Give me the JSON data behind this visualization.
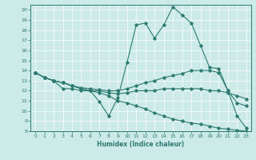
{
  "xlabel": "Humidex (Indice chaleur)",
  "xlim": [
    -0.5,
    23.5
  ],
  "ylim": [
    8,
    20.5
  ],
  "yticks": [
    8,
    9,
    10,
    11,
    12,
    13,
    14,
    15,
    16,
    17,
    18,
    19,
    20
  ],
  "xticks": [
    0,
    1,
    2,
    3,
    4,
    5,
    6,
    7,
    8,
    9,
    10,
    11,
    12,
    13,
    14,
    15,
    16,
    17,
    18,
    19,
    20,
    21,
    22,
    23
  ],
  "bg_color": "#cceae7",
  "line_color": "#2d7a72",
  "series": [
    {
      "x": [
        0,
        1,
        2,
        3,
        4,
        5,
        6,
        7,
        8,
        9,
        10,
        11,
        12,
        13,
        14,
        15,
        16,
        17,
        18,
        19,
        20,
        21,
        22,
        23
      ],
      "y": [
        13.8,
        13.3,
        13.0,
        12.2,
        12.2,
        12.0,
        12.0,
        10.9,
        9.5,
        11.3,
        14.8,
        18.5,
        18.7,
        17.2,
        18.5,
        20.3,
        19.5,
        18.7,
        16.5,
        14.3,
        14.2,
        12.0,
        9.5,
        8.3
      ]
    },
    {
      "x": [
        0,
        1,
        2,
        3,
        4,
        5,
        6,
        7,
        8,
        9,
        10,
        11,
        12,
        13,
        14,
        15,
        16,
        17,
        18,
        19,
        20,
        21,
        22,
        23
      ],
      "y": [
        13.8,
        13.3,
        13.0,
        12.8,
        12.5,
        12.3,
        12.2,
        12.1,
        12.0,
        12.0,
        12.2,
        12.5,
        12.8,
        13.0,
        13.3,
        13.5,
        13.7,
        14.0,
        14.0,
        14.0,
        13.8,
        12.0,
        10.8,
        10.5
      ]
    },
    {
      "x": [
        0,
        1,
        2,
        3,
        4,
        5,
        6,
        7,
        8,
        9,
        10,
        11,
        12,
        13,
        14,
        15,
        16,
        17,
        18,
        19,
        20,
        21,
        22,
        23
      ],
      "y": [
        13.8,
        13.3,
        13.0,
        12.8,
        12.5,
        12.2,
        12.0,
        12.0,
        11.8,
        11.7,
        11.8,
        12.0,
        12.0,
        12.0,
        12.2,
        12.2,
        12.2,
        12.2,
        12.2,
        12.0,
        12.0,
        11.8,
        11.5,
        11.2
      ]
    },
    {
      "x": [
        0,
        1,
        2,
        3,
        4,
        5,
        6,
        7,
        8,
        9,
        10,
        11,
        12,
        13,
        14,
        15,
        16,
        17,
        18,
        19,
        20,
        21,
        22,
        23
      ],
      "y": [
        13.8,
        13.3,
        13.0,
        12.8,
        12.5,
        12.2,
        12.0,
        11.8,
        11.5,
        11.0,
        10.8,
        10.5,
        10.2,
        9.8,
        9.5,
        9.2,
        9.0,
        8.8,
        8.7,
        8.5,
        8.3,
        8.2,
        8.1,
        8.0
      ]
    }
  ]
}
